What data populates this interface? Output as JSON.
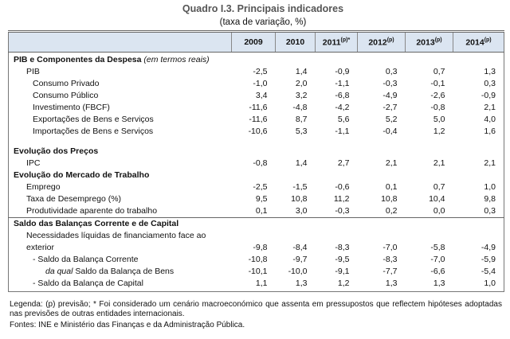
{
  "header": {
    "title": "Quadro I.3. Principais indicadores",
    "subtitle": "(taxa de variação, %)"
  },
  "table": {
    "columns": [
      {
        "year": "2009"
      },
      {
        "year": "2010"
      },
      {
        "year": "2011",
        "sup": "(p)*"
      },
      {
        "year": "2012",
        "sup": "(p)"
      },
      {
        "year": "2013",
        "sup": "(p)"
      },
      {
        "year": "2014",
        "sup": "(p)"
      }
    ],
    "sections": [
      {
        "title": "PIB e Componentes da Despesa",
        "note": "(em termos reais)",
        "rows": [
          {
            "label": "PIB",
            "values": [
              "-2,5",
              "1,4",
              "-0,9",
              "0,3",
              "0,7",
              "1,3"
            ],
            "children": [
              {
                "label": "Consumo Privado",
                "values": [
                  "-1,0",
                  "2,0",
                  "-1,1",
                  "-0,3",
                  "-0,1",
                  "0,3"
                ]
              },
              {
                "label": "Consumo Público",
                "values": [
                  "3,4",
                  "3,2",
                  "-6,8",
                  "-4,9",
                  "-2,6",
                  "-0,9"
                ]
              },
              {
                "label": "Investimento (FBCF)",
                "values": [
                  "-11,6",
                  "-4,8",
                  "-4,2",
                  "-2,7",
                  "-0,8",
                  "2,1"
                ]
              },
              {
                "label": "Exportações de Bens e Serviços",
                "values": [
                  "-11,6",
                  "8,7",
                  "5,6",
                  "5,2",
                  "5,0",
                  "4,0"
                ]
              },
              {
                "label": "Importações de Bens e Serviços",
                "values": [
                  "-10,6",
                  "5,3",
                  "-1,1",
                  "-0,4",
                  "1,2",
                  "1,6"
                ]
              }
            ]
          }
        ]
      },
      {
        "title": "Evolução dos Preços",
        "rows": [
          {
            "label": "IPC",
            "values": [
              "-0,8",
              "1,4",
              "2,7",
              "2,1",
              "2,1",
              "2,1"
            ]
          }
        ]
      },
      {
        "title": "Evolução do Mercado de Trabalho",
        "rows": [
          {
            "label": "Emprego",
            "values": [
              "-2,5",
              "-1,5",
              "-0,6",
              "0,1",
              "0,7",
              "1,0"
            ]
          },
          {
            "label": "Taxa de Desemprego (%)",
            "values": [
              "9,5",
              "10,8",
              "11,2",
              "10,8",
              "10,4",
              "9,8"
            ]
          },
          {
            "label": "Produtividade aparente do trabalho",
            "values": [
              "0,1",
              "3,0",
              "-0,3",
              "0,2",
              "0,0",
              "0,3"
            ]
          }
        ]
      },
      {
        "title": "Saldo das Balanças Corrente e de Capital",
        "rows": [
          {
            "label": "Necessidades líquidas de financiamento face ao exterior",
            "values": [
              "-9,8",
              "-8,4",
              "-8,3",
              "-7,0",
              "-5,8",
              "-4,9"
            ],
            "children": [
              {
                "label": "- Saldo da Balança Corrente",
                "values": [
                  "-10,8",
                  "-9,7",
                  "-9,5",
                  "-8,3",
                  "-7,0",
                  "-5,9"
                ],
                "children": [
                  {
                    "prefix": "da qual",
                    "label": "Saldo da Balança de Bens",
                    "values": [
                      "-10,1",
                      "-10,0",
                      "-9,1",
                      "-7,7",
                      "-6,6",
                      "-5,4"
                    ]
                  }
                ]
              },
              {
                "label": "- Saldo da Balança de Capital",
                "values": [
                  "1,1",
                  "1,3",
                  "1,2",
                  "1,3",
                  "1,3",
                  "1,0"
                ]
              }
            ]
          }
        ]
      }
    ]
  },
  "footer": {
    "legend": "Legenda: (p) previsão; * Foi considerado um cenário macroeconómico que assenta em pressupostos que reflectem hipóteses adoptadas nas previsões de outras entidades internacionais.",
    "sources": "Fontes: INE e Ministério das Finanças e da Administração Pública."
  }
}
